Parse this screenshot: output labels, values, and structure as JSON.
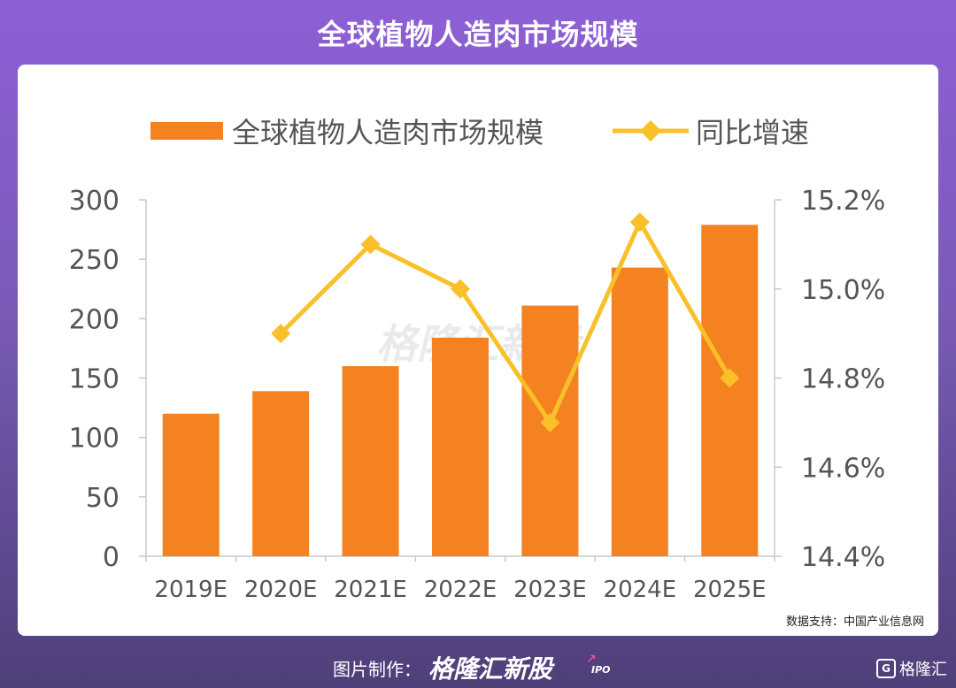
{
  "header": {
    "title": "全球植物人造肉市场规模"
  },
  "chart_data": {
    "type": "bar+line",
    "categories": [
      "2019E",
      "2020E",
      "2021E",
      "2022E",
      "2023E",
      "2024E",
      "2025E"
    ],
    "series": [
      {
        "name": "全球植物人造肉市场规模",
        "type": "bar",
        "axis": "left",
        "color": "#f58220",
        "values": [
          120,
          139,
          160,
          184,
          211,
          243,
          279
        ]
      },
      {
        "name": "同比增速",
        "type": "line",
        "axis": "right",
        "color": "#f9c02a",
        "values": [
          null,
          14.9,
          15.1,
          15.0,
          14.7,
          15.15,
          14.8
        ]
      }
    ],
    "yleft": {
      "range": [
        0,
        300
      ],
      "ticks": [
        "0",
        "50",
        "100",
        "150",
        "200",
        "250",
        "300"
      ]
    },
    "yright": {
      "range": [
        14.4,
        15.2
      ],
      "ticks": [
        "14.4%",
        "14.6%",
        "14.8%",
        "15.0%",
        "15.2%"
      ]
    },
    "legend": "top",
    "grid": false
  },
  "watermark": {
    "text": "格隆汇新股",
    "sub": "IPO"
  },
  "source": {
    "text": "数据支持：中国产业信息网"
  },
  "footer": {
    "label": "图片制作：",
    "brand": "格隆汇新股",
    "brand_sub": "IPO",
    "corner": "格隆汇",
    "corner_glyph": "G"
  }
}
